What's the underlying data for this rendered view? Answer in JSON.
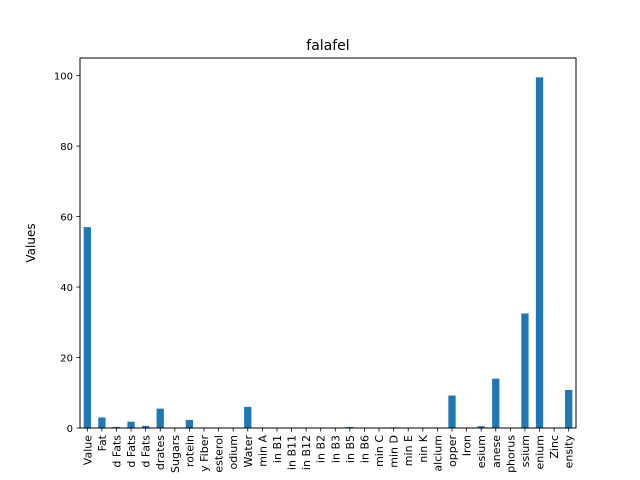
{
  "chart_data": {
    "type": "bar",
    "title": "falafel",
    "xlabel": "",
    "ylabel": "Values",
    "ylim": [
      0,
      105
    ],
    "yticks": [
      0,
      20,
      40,
      60,
      80,
      100
    ],
    "grid": false,
    "bar_color": "#1f77b4",
    "categories": [
      "Value",
      "Fat",
      "d Fats",
      "d Fats",
      "d Fats",
      "drates",
      "Sugars",
      "rotein",
      "y Fiber",
      "esterol",
      "odium",
      "Water",
      "min A",
      "in B1",
      "in B11",
      "in B12",
      "in B2",
      "in B3",
      "in B5",
      "in B6",
      "min C",
      "min D",
      "min E",
      "nin K",
      "alcium",
      "opper",
      "Iron",
      "esium",
      "anese",
      "phorus",
      "ssium",
      "enium",
      "Zinc",
      "ensity"
    ],
    "values": [
      57,
      3,
      0.3,
      1.8,
      0.6,
      5.5,
      0,
      2.3,
      0,
      0,
      0,
      6,
      0,
      0,
      0,
      0,
      0,
      0,
      0.3,
      0,
      0,
      0.2,
      0,
      0,
      0,
      9.2,
      0,
      0.5,
      14,
      0,
      32.5,
      99.5,
      0,
      10.8
    ]
  }
}
